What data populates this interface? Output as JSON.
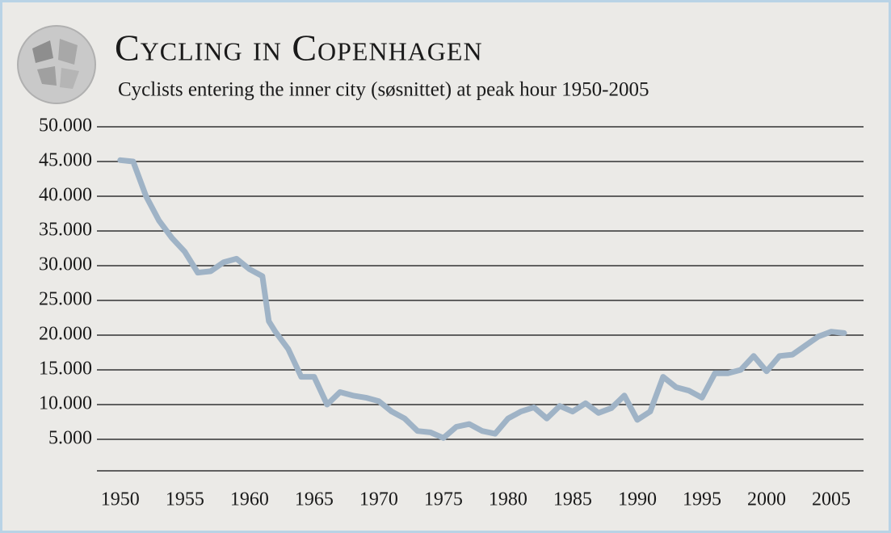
{
  "chart_data": {
    "type": "line",
    "title": "Cycling in Copenhagen",
    "subtitle": "Cyclists entering the inner city (søsnittet) at peak hour 1950-2005",
    "color": "#9fb3c6",
    "x": [
      1950,
      1951,
      1952,
      1953,
      1954,
      1955,
      1956,
      1957,
      1958,
      1959,
      1960,
      1961,
      1961.5,
      1962,
      1963,
      1964,
      1965,
      1966,
      1967,
      1968,
      1969,
      1970,
      1971,
      1972,
      1973,
      1974,
      1975,
      1976,
      1977,
      1978,
      1979,
      1980,
      1981,
      1982,
      1983,
      1984,
      1985,
      1986,
      1987,
      1988,
      1989,
      1990,
      1991,
      1992,
      1993,
      1994,
      1995,
      1996,
      1997,
      1998,
      1999,
      2000,
      2001,
      2002,
      2003,
      2004,
      2005,
      2006
    ],
    "values": [
      45200,
      45000,
      40000,
      36500,
      34000,
      32000,
      29000,
      29200,
      30500,
      31000,
      29500,
      28500,
      22000,
      20500,
      18000,
      14000,
      14000,
      10000,
      11800,
      11300,
      11000,
      10500,
      9000,
      8000,
      6200,
      6000,
      5200,
      6800,
      7200,
      6200,
      5800,
      8000,
      9000,
      9600,
      8000,
      9800,
      9000,
      10200,
      8800,
      9500,
      11300,
      7800,
      9000,
      14000,
      12500,
      12000,
      11000,
      14500,
      14500,
      15000,
      17000,
      14800,
      17000,
      17200,
      18500,
      19800,
      20500,
      20300
    ],
    "xlim": [
      1948.2,
      2007.5
    ],
    "xticks": [
      1950,
      1955,
      1960,
      1965,
      1970,
      1975,
      1980,
      1985,
      1990,
      1995,
      2000,
      2005
    ],
    "ylim": [
      0,
      50000
    ],
    "yticks": [
      {
        "value": 5000,
        "label": "5.000"
      },
      {
        "value": 10000,
        "label": "10.000"
      },
      {
        "value": 15000,
        "label": "15.000"
      },
      {
        "value": 20000,
        "label": "20.000"
      },
      {
        "value": 25000,
        "label": "25.000"
      },
      {
        "value": 30000,
        "label": "30.000"
      },
      {
        "value": 35000,
        "label": "35.000"
      },
      {
        "value": 40000,
        "label": "40.000"
      },
      {
        "value": 45000,
        "label": "45.000"
      },
      {
        "value": 50000,
        "label": "50.000"
      }
    ],
    "grid": true
  }
}
